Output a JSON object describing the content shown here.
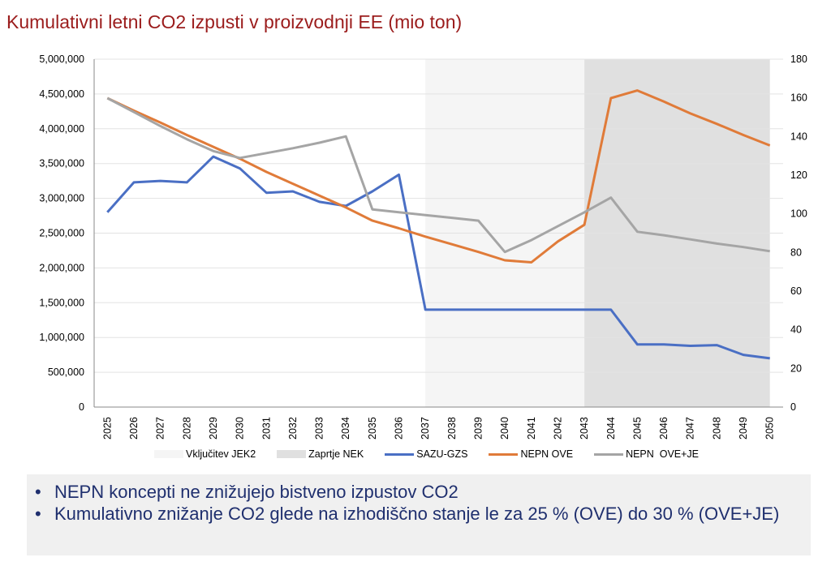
{
  "title": "Kumulativni letni CO2 izpusti v proizvodnji EE (mio ton)",
  "chart_data": {
    "type": "line",
    "title": "Kumulativni letni CO2 izpusti v proizvodnji EE (mio ton)",
    "categories": [
      "2025",
      "2026",
      "2027",
      "2028",
      "2029",
      "2030",
      "2031",
      "2032",
      "2033",
      "2034",
      "2035",
      "2036",
      "2037",
      "2038",
      "2039",
      "2040",
      "2041",
      "2042",
      "2043",
      "2044",
      "2045",
      "2046",
      "2047",
      "2048",
      "2049",
      "2050"
    ],
    "ylim": [
      0,
      5000000
    ],
    "y_ticks": [
      "5,000,000",
      "4,500,000",
      "4,000,000",
      "3,500,000",
      "3,000,000",
      "2,500,000",
      "2,000,000",
      "1,500,000",
      "1,000,000",
      "500,000",
      "0"
    ],
    "y2lim": [
      0,
      180
    ],
    "y2_ticks": [
      "180",
      "160",
      "140",
      "120",
      "100",
      "80",
      "60",
      "40",
      "20",
      "0"
    ],
    "grid": true,
    "legend_position": "bottom",
    "shaded_regions": [
      {
        "name": "Vključitev JEK2",
        "from": "2037",
        "to": "2043",
        "color": "#f5f5f5"
      },
      {
        "name": "Zaprtje NEK",
        "from": "2043",
        "to": "2050",
        "color": "#e0e0e0"
      }
    ],
    "series": [
      {
        "name": "SAZU-GZS",
        "color": "#4a6fc4",
        "values": [
          2800000,
          3230000,
          3250000,
          3230000,
          3600000,
          3430000,
          3080000,
          3100000,
          2950000,
          2890000,
          3100000,
          3340000,
          1400000,
          1400000,
          1400000,
          1400000,
          1400000,
          1400000,
          1400000,
          1400000,
          900000,
          900000,
          880000,
          890000,
          750000,
          700000
        ]
      },
      {
        "name": "NEPN OVE",
        "color": "#e07b39",
        "values": [
          4440000,
          4260000,
          4090000,
          3910000,
          3740000,
          3570000,
          3380000,
          3210000,
          3040000,
          2870000,
          2680000,
          2570000,
          2450000,
          2340000,
          2230000,
          2110000,
          2080000,
          2380000,
          2620000,
          4440000,
          4550000,
          4390000,
          4220000,
          4070000,
          3910000,
          3760000
        ]
      },
      {
        "name": "NEPN  OVE+JE",
        "color": "#a5a5a5",
        "values": [
          4440000,
          4240000,
          4040000,
          3850000,
          3680000,
          3580000,
          3650000,
          3720000,
          3800000,
          3890000,
          2840000,
          2800000,
          2760000,
          2720000,
          2680000,
          2230000,
          2400000,
          2600000,
          2800000,
          3010000,
          2520000,
          2470000,
          2410000,
          2350000,
          2300000,
          2240000
        ]
      }
    ]
  },
  "notes": [
    "NEPN koncepti ne znižujejo bistveno izpustov CO2",
    "Kumulativno znižanje CO2 glede na izhodiščno stanje le za 25 % (OVE) do 30 % (OVE+JE)"
  ]
}
